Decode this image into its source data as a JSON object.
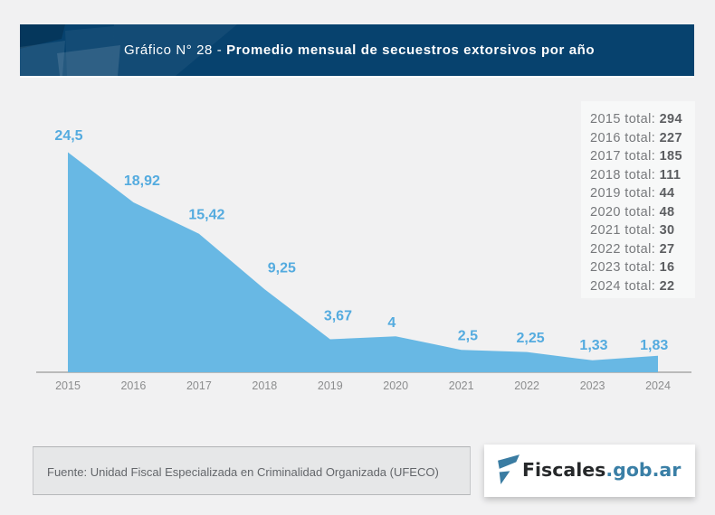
{
  "header": {
    "title_prefix": "Gráfico N° 28 - ",
    "title_bold": "Promedio mensual de secuestros extorsivos por año"
  },
  "chart_data": {
    "type": "area",
    "title": "Promedio mensual de secuestros extorsivos por año",
    "categories": [
      "2015",
      "2016",
      "2017",
      "2018",
      "2019",
      "2020",
      "2021",
      "2022",
      "2023",
      "2024"
    ],
    "values": [
      24.5,
      18.92,
      15.42,
      9.25,
      3.67,
      4,
      2.5,
      2.25,
      1.33,
      1.83
    ],
    "point_labels": [
      "24,5",
      "18,92",
      "15,42",
      "9,25",
      "3,67",
      "4",
      "2,5",
      "2,25",
      "1,33",
      "1,83"
    ],
    "totals": [
      {
        "label": "2015 total:",
        "value": "294"
      },
      {
        "label": "2016 total:",
        "value": "227"
      },
      {
        "label": "2017 total:",
        "value": "185"
      },
      {
        "label": "2018 total:",
        "value": "111"
      },
      {
        "label": "2019 total:",
        "value": "44"
      },
      {
        "label": "2020 total:",
        "value": "48"
      },
      {
        "label": "2021 total:",
        "value": "30"
      },
      {
        "label": "2022 total:",
        "value": "27"
      },
      {
        "label": "2023 total:",
        "value": "16"
      },
      {
        "label": "2024 total:",
        "value": "22"
      }
    ],
    "xlabel": "",
    "ylabel": "",
    "ylim": [
      0,
      24.5
    ],
    "grid": false,
    "legend_position": "top-right",
    "area_color": "#68b8e4",
    "value_label_color": "#54abdf",
    "axis_color": "#a8a8a8",
    "tick_color": "#8c8d8e"
  },
  "footer": {
    "source_text": "Fuente: Unidad Fiscal Especializada en Criminalidad Organizada (UFECO)"
  },
  "logo": {
    "name": "Fiscales.gob.ar",
    "text_dark": "Fiscales",
    "text_accent": ".gob.ar",
    "icon_color": "#3a7ca2"
  },
  "colors": {
    "page_bg": "#f1f1f2",
    "header_bg": "#07426e",
    "header_text": "#ffffff",
    "legend_bg": "#f7f8f8",
    "source_box_bg": "#e6e7e8"
  }
}
